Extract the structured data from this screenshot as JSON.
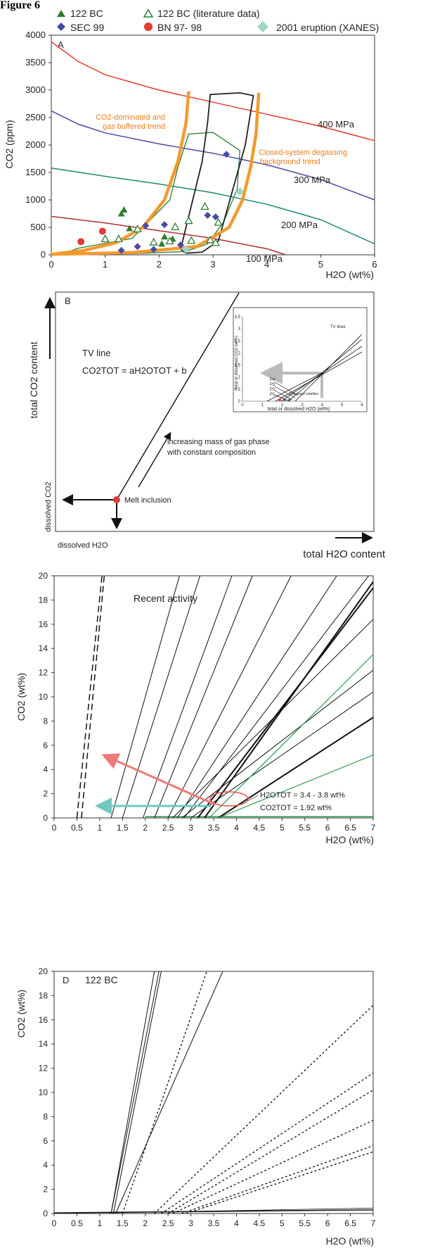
{
  "figure_label": "Figure 6",
  "legend": [
    {
      "label": "122 BC",
      "marker": "triangle-filled",
      "color": "#2e7d32"
    },
    {
      "label": "122 BC (literature data)",
      "marker": "triangle-open",
      "color": "#2e7d32"
    },
    {
      "label": "SEC 99",
      "marker": "diamond",
      "color": "#4a4aa8"
    },
    {
      "label": "BN 97- 98",
      "marker": "circle",
      "color": "#e53935"
    },
    {
      "label": "2001 eruption (XANES)",
      "marker": "diamond",
      "color": "#9fd4c8"
    }
  ],
  "panels": {
    "a": {
      "letter": "A",
      "ylabel": "CO2 (ppm)",
      "xlabel": "H2O (wt%)",
      "yticks": [
        "0",
        "500",
        "1000",
        "1500",
        "2000",
        "2500",
        "3000",
        "3500",
        "4000"
      ],
      "xticks": [
        "0",
        "1",
        "2",
        "3",
        "4",
        "5",
        "6"
      ],
      "annotations": {
        "p400": "400 MPa",
        "p300": "300 MPa",
        "p200": "200 MPa",
        "p100": "100 MPa",
        "co2_trend_1": "CO2-dominated and",
        "co2_trend_2": "gas buffered trend",
        "closed_1": "Closed-system degassing",
        "closed_2": "background trend"
      }
    },
    "b": {
      "letter": "B",
      "y_top": "total CO2 content",
      "y_bottom": "dissolved CO2",
      "x_left": "dissolved H2O",
      "x_right": "total H2O content",
      "tv_line": "TV line",
      "equation": "CO2TOT = aH2OTOT + b",
      "arrow_1": "increasing mass of gas phase",
      "arrow_2": "with constant composition",
      "melt": "Melt inclusion",
      "inset": {
        "tv_lines": "TV lines",
        "ylabel": "total or dissolved CO2 (wt%)",
        "xlabel": "total or dissolved H2O (wt%)",
        "xticks": [
          "0",
          "1",
          "2",
          "3",
          "4",
          "5",
          "6"
        ],
        "yticks": [
          "0",
          "0.5",
          "1",
          "1.5",
          "2",
          "2.5",
          "3",
          "3.5"
        ],
        "p_labels": [
          "P4",
          "P3",
          "P2",
          "P1"
        ],
        "dissolved": "Dissolved volatiles"
      }
    },
    "c": {
      "title": "Recent activity",
      "ylabel": "CO2 (wt%)",
      "xlabel": "H2O (wt%)",
      "yticks": [
        "0",
        "2",
        "4",
        "6",
        "8",
        "10",
        "12",
        "14",
        "16",
        "18",
        "20"
      ],
      "xticks": [
        "0",
        "0.5",
        "1",
        "1.5",
        "2",
        "2.5",
        "3",
        "3.5",
        "4",
        "4.5",
        "5",
        "5.5",
        "6",
        "6.5",
        "7"
      ],
      "ann_h2o": "H2OTOT = 3.4 - 3.8 wt%",
      "ann_co2": "CO2TOT = 1.92 wt%"
    },
    "d": {
      "letter": "D",
      "title": "122 BC",
      "ylabel": "CO2 (wt%)",
      "xlabel": "H2O (wt%)",
      "yticks": [
        "0",
        "2",
        "4",
        "6",
        "8",
        "10",
        "12",
        "14",
        "16",
        "18",
        "20"
      ],
      "xticks": [
        "0",
        "0.5",
        "1",
        "1.5",
        "2",
        "2.5",
        "3",
        "3.5",
        "4",
        "4.5",
        "5",
        "5.5",
        "6",
        "6.5",
        "7"
      ]
    }
  },
  "chart_data": [
    {
      "type": "scatter",
      "panel": "A",
      "xlabel": "H2O (wt%)",
      "ylabel": "CO2 (ppm)",
      "xlim": [
        0,
        6
      ],
      "ylim": [
        0,
        4000
      ],
      "isobars": [
        {
          "name": "400 MPa",
          "color": "#e8392e",
          "x": [
            0,
            0.5,
            1,
            2,
            3,
            4,
            5,
            6
          ],
          "y": [
            3880,
            3520,
            3280,
            3000,
            2780,
            2560,
            2340,
            2080
          ]
        },
        {
          "name": "300 MPa",
          "color": "#4a4aa8",
          "x": [
            0,
            0.5,
            1,
            2,
            3,
            4,
            5,
            6
          ],
          "y": [
            2620,
            2380,
            2220,
            2020,
            1850,
            1640,
            1370,
            1000
          ]
        },
        {
          "name": "200 MPa",
          "color": "#1e8a78",
          "x": [
            0,
            1,
            2,
            3,
            4,
            5,
            6
          ],
          "y": [
            1580,
            1430,
            1290,
            1130,
            920,
            640,
            200
          ]
        },
        {
          "name": "100 MPa",
          "color": "#b03030",
          "x": [
            0,
            1,
            2,
            3,
            4,
            4.35
          ],
          "y": [
            700,
            580,
            440,
            300,
            110,
            0
          ]
        }
      ],
      "series": [
        {
          "name": "122 BC",
          "x": [
            1.3,
            1.35,
            1.45,
            2.05,
            2.1,
            2.25
          ],
          "y": [
            750,
            820,
            480,
            200,
            330,
            290
          ]
        },
        {
          "name": "122 BC (literature data)",
          "x": [
            1.0,
            1.25,
            1.6,
            1.9,
            2.2,
            2.3,
            2.55,
            2.6,
            2.85,
            2.95,
            3.05,
            3.1
          ],
          "y": [
            290,
            290,
            470,
            230,
            250,
            510,
            620,
            260,
            880,
            270,
            220,
            590
          ]
        },
        {
          "name": "SEC 99",
          "x": [
            1.3,
            1.6,
            1.75,
            1.9,
            2.1,
            2.4,
            2.9,
            3.05,
            3.25
          ],
          "y": [
            80,
            150,
            530,
            100,
            550,
            180,
            720,
            690,
            1830
          ]
        },
        {
          "name": "BN 97- 98",
          "x": [
            0.55,
            0.95
          ],
          "y": [
            240,
            430
          ]
        },
        {
          "name": "2001 eruption (XANES)",
          "x": [
            2.5,
            3.5
          ],
          "y": [
            100,
            1150
          ]
        }
      ],
      "trends": {
        "co2_buffered": {
          "x": [
            0,
            0.6,
            1.2,
            1.7,
            2.1,
            2.35,
            2.5,
            2.55
          ],
          "y": [
            10,
            80,
            220,
            500,
            1000,
            1700,
            2400,
            2980
          ]
        },
        "closed_system": {
          "x": [
            0,
            1.5,
            2.7,
            3.3,
            3.55,
            3.7,
            3.8,
            3.85
          ],
          "y": [
            10,
            40,
            150,
            500,
            1000,
            1600,
            2200,
            2950
          ]
        }
      }
    },
    {
      "type": "line",
      "panel": "C",
      "title": "Recent activity",
      "xlabel": "H2O (wt%)",
      "ylabel": "CO2 (wt%)",
      "xlim": [
        0,
        7
      ],
      "ylim": [
        0,
        20
      ],
      "lines": [
        {
          "x": [
            1.25,
            2.75
          ],
          "y": [
            0,
            20
          ],
          "style": "solid"
        },
        {
          "x": [
            1.5,
            3.2
          ],
          "y": [
            0,
            20
          ],
          "style": "solid"
        },
        {
          "x": [
            1.95,
            3.9
          ],
          "y": [
            0,
            20
          ],
          "style": "solid"
        },
        {
          "x": [
            2.2,
            4.35
          ],
          "y": [
            0,
            20
          ],
          "style": "solid"
        },
        {
          "x": [
            2.5,
            5.2
          ],
          "y": [
            0,
            20
          ],
          "style": "solid"
        },
        {
          "x": [
            2.7,
            6.2
          ],
          "y": [
            0,
            20
          ],
          "style": "solid"
        },
        {
          "x": [
            2.85,
            6.9
          ],
          "y": [
            0,
            20
          ],
          "style": "solid"
        },
        {
          "x": [
            2.6,
            7.0
          ],
          "y": [
            0,
            16.4
          ],
          "style": "solid"
        },
        {
          "x": [
            2.8,
            7.0
          ],
          "y": [
            0,
            12.2
          ],
          "style": "solid"
        },
        {
          "x": [
            3.0,
            7.0
          ],
          "y": [
            0,
            10.4
          ],
          "style": "solid"
        },
        {
          "x": [
            3.3,
            7.0
          ],
          "y": [
            0,
            19.5
          ],
          "style": "bold"
        },
        {
          "x": [
            3.15,
            7.0
          ],
          "y": [
            0,
            19.0
          ],
          "style": "bold"
        },
        {
          "x": [
            3.6,
            7.0
          ],
          "y": [
            0,
            8.3
          ],
          "style": "bold"
        },
        {
          "x": [
            3.4,
            7.0
          ],
          "y": [
            0,
            13.5
          ],
          "style": "green"
        },
        {
          "x": [
            3.6,
            7.0
          ],
          "y": [
            0,
            5.2
          ],
          "style": "green"
        },
        {
          "x": [
            0.5,
            1.05
          ],
          "y": [
            0,
            20
          ],
          "style": "dashed"
        },
        {
          "x": [
            0.6,
            1.1
          ],
          "y": [
            0,
            20
          ],
          "style": "dashed"
        }
      ],
      "baseline_green": [
        0.1,
        0.1
      ]
    },
    {
      "type": "line",
      "panel": "D",
      "title": "122 BC",
      "xlabel": "H2O (wt%)",
      "ylabel": "CO2 (wt%)",
      "xlim": [
        0,
        7
      ],
      "ylim": [
        0,
        20
      ],
      "lines": [
        {
          "x": [
            1.25,
            2.2
          ],
          "y": [
            0,
            20
          ],
          "style": "solid"
        },
        {
          "x": [
            1.25,
            2.3
          ],
          "y": [
            0,
            20
          ],
          "style": "solid"
        },
        {
          "x": [
            1.3,
            2.35
          ],
          "y": [
            0,
            20
          ],
          "style": "solid"
        },
        {
          "x": [
            1.35,
            3.7
          ],
          "y": [
            0,
            20
          ],
          "style": "solid"
        },
        {
          "x": [
            1.5,
            3.35
          ],
          "y": [
            0,
            20
          ],
          "style": "dotted"
        },
        {
          "x": [
            2.2,
            7.0
          ],
          "y": [
            0,
            17.2
          ],
          "style": "dotted"
        },
        {
          "x": [
            2.35,
            7.0
          ],
          "y": [
            0,
            11.6
          ],
          "style": "dotted"
        },
        {
          "x": [
            2.5,
            7.0
          ],
          "y": [
            0,
            10.2
          ],
          "style": "dotted"
        },
        {
          "x": [
            2.6,
            7.0
          ],
          "y": [
            0,
            7.7
          ],
          "style": "dotted"
        },
        {
          "x": [
            2.8,
            7.0
          ],
          "y": [
            0,
            5.6
          ],
          "style": "dotted"
        },
        {
          "x": [
            2.9,
            7.0
          ],
          "y": [
            0,
            5.1
          ],
          "style": "dotted"
        }
      ]
    }
  ]
}
